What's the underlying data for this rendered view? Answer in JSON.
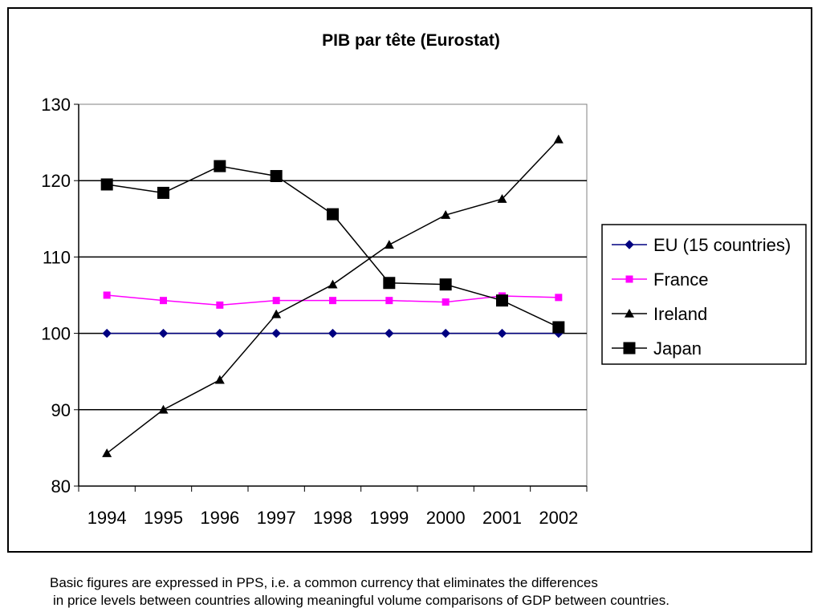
{
  "chart_data": {
    "type": "line",
    "title": "PIB par tête (Eurostat)",
    "xlabel": "",
    "ylabel": "",
    "categories": [
      "1994",
      "1995",
      "1996",
      "1997",
      "1998",
      "1999",
      "2000",
      "2001",
      "2002"
    ],
    "ylim": [
      80,
      130
    ],
    "yticks": [
      "80",
      "90",
      "100",
      "110",
      "120",
      "130"
    ],
    "grid": "horizontal",
    "legend_position": "right",
    "series": [
      {
        "name": "EU (15 countries)",
        "color": "#000080",
        "marker": "diamond",
        "values": [
          100,
          100,
          100,
          100,
          100,
          100,
          100,
          100,
          100
        ]
      },
      {
        "name": "France",
        "color": "#ff00ff",
        "marker": "square-small",
        "values": [
          105.0,
          104.3,
          103.7,
          104.3,
          104.3,
          104.3,
          104.1,
          104.9,
          104.7
        ]
      },
      {
        "name": "Ireland",
        "color": "#000000",
        "marker": "triangle",
        "values": [
          84.3,
          90.0,
          93.9,
          102.5,
          106.4,
          111.6,
          115.5,
          117.6,
          125.4
        ]
      },
      {
        "name": "Japan",
        "color": "#000000",
        "marker": "square",
        "values": [
          119.5,
          118.4,
          121.9,
          120.6,
          115.6,
          106.6,
          106.4,
          104.3,
          100.8
        ]
      }
    ]
  },
  "footnote": {
    "line1": "Basic figures are expressed in PPS, i.e. a common currency that eliminates the differences",
    "line2": "in price levels between countries allowing meaningful volume comparisons of GDP between countries."
  }
}
